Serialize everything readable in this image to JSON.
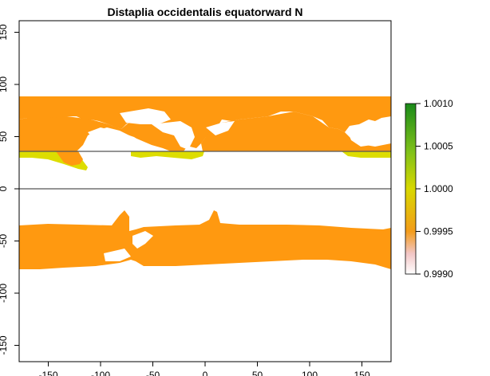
{
  "chart_data": {
    "type": "heatmap",
    "title": "Distaplia occidentalis equatorward N",
    "xlabel": "",
    "ylabel": "",
    "xlim": [
      -180,
      180
    ],
    "ylim": [
      -180,
      180
    ],
    "x_ticks": [
      "-150",
      "-100",
      "-50",
      "0",
      "50",
      "100",
      "150"
    ],
    "y_ticks": [
      "-150",
      "-100",
      "-50",
      "0",
      "50",
      "100",
      "150"
    ],
    "grid": false,
    "reference_lines_lat": [
      0,
      37
    ],
    "colorbar": {
      "position": "right",
      "range": [
        0.999,
        1.001
      ],
      "tick_labels": [
        "0.9990",
        "0.9995",
        "1.0000",
        "1.0005",
        "1.0010"
      ],
      "colors": [
        "#ffffff",
        "#f2c6c6",
        "#f39c1a",
        "#d8d800",
        "#7fc11a",
        "#1a8a1a"
      ]
    },
    "regions": [
      {
        "label": "northern band",
        "lat_range": [
          37,
          90
        ],
        "value": 0.99965,
        "color": "#ff9910"
      },
      {
        "label": "southern band",
        "lat_range": [
          -80,
          -32
        ],
        "value": 0.99965,
        "color": "#ff9910"
      },
      {
        "label": "narrow band at 37N",
        "lat_range": [
          30,
          37
        ],
        "value": 1.0,
        "color": "#dddd00"
      }
    ]
  }
}
